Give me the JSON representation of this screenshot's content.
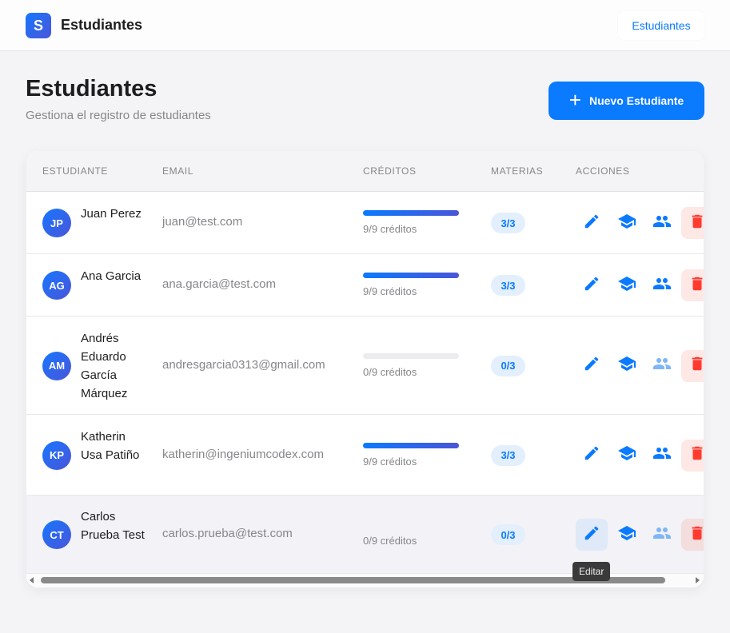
{
  "header": {
    "logo_letter": "S",
    "title": "Estudiantes",
    "nav_button": "Estudiantes"
  },
  "page": {
    "title": "Estudiantes",
    "subtitle": "Gestiona el registro de estudiantes",
    "new_button": "Nuevo Estudiante"
  },
  "table": {
    "columns": [
      "ESTUDIANTE",
      "EMAIL",
      "CRÉDITOS",
      "MATERIAS",
      "ACCIONES"
    ],
    "rows": [
      {
        "initials": "JP",
        "name": "Juan Perez",
        "email": "juan@test.com",
        "credits_text": "9/9 créditos",
        "credits_progress": 1.0,
        "subjects": "3/3"
      },
      {
        "initials": "AG",
        "name": "Ana Garcia",
        "email": "ana.garcia@test.com",
        "credits_text": "9/9 créditos",
        "credits_progress": 1.0,
        "subjects": "3/3"
      },
      {
        "initials": "AM",
        "name": "Andrés Eduardo García Márquez",
        "email": "andresgarcia0313@gmail.com",
        "credits_text": "0/9 créditos",
        "credits_progress": 0,
        "subjects": "0/3"
      },
      {
        "initials": "KP",
        "name": "Katherin Usa Patiño",
        "email": "katherin@ingeniumcodex.com",
        "credits_text": "9/9 créditos",
        "credits_progress": 1.0,
        "subjects": "3/3"
      },
      {
        "initials": "CT",
        "name": "Carlos Prueba Test",
        "email": "carlos.prueba@test.com",
        "credits_text": "0/9 créditos",
        "credits_progress": 0,
        "subjects": "0/3"
      }
    ]
  },
  "tooltip": "Editar",
  "colors": {
    "accent": "#0a7aff",
    "danger": "#ff3b30",
    "danger_bg": "#fde8e6"
  }
}
